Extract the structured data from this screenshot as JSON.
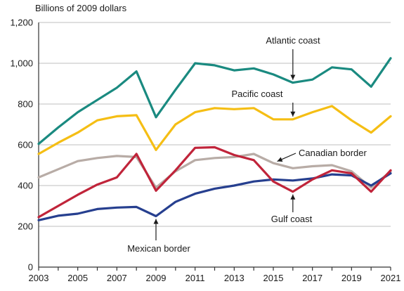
{
  "chart_data": {
    "type": "line",
    "title": "",
    "units_label": "Billions of 2009 dollars",
    "xlabel": "",
    "ylabel": "",
    "x": [
      2003,
      2004,
      2005,
      2006,
      2007,
      2008,
      2009,
      2010,
      2011,
      2012,
      2013,
      2014,
      2015,
      2016,
      2017,
      2018,
      2019,
      2020,
      2021
    ],
    "x_tick_labels": [
      "2003",
      "2005",
      "2007",
      "2009",
      "2011",
      "2013",
      "2015",
      "2017",
      "2019",
      "2021"
    ],
    "x_tick_values": [
      2003,
      2005,
      2007,
      2009,
      2011,
      2013,
      2015,
      2017,
      2019,
      2021
    ],
    "xlim": [
      2003,
      2021
    ],
    "y_tick_labels": [
      "0",
      "200",
      "400",
      "600",
      "800",
      "1,000",
      "1,200"
    ],
    "y_tick_values": [
      0,
      200,
      400,
      600,
      800,
      1000,
      1200
    ],
    "ylim": [
      0,
      1200
    ],
    "grid": "horizontal",
    "series": [
      {
        "name": "Atlantic coast",
        "color": "#1a8a80",
        "values": [
          605,
          685,
          760,
          820,
          880,
          960,
          735,
          870,
          1000,
          990,
          965,
          975,
          945,
          905,
          920,
          980,
          970,
          885,
          1025
        ]
      },
      {
        "name": "Pacific coast",
        "color": "#f5be14",
        "values": [
          555,
          610,
          660,
          720,
          740,
          745,
          575,
          700,
          760,
          780,
          775,
          780,
          725,
          725,
          760,
          790,
          720,
          660,
          740
        ]
      },
      {
        "name": "Canadian border",
        "color": "#b8aca6",
        "values": [
          440,
          480,
          520,
          535,
          545,
          540,
          390,
          470,
          525,
          535,
          540,
          555,
          510,
          485,
          495,
          500,
          470,
          390,
          470
        ]
      },
      {
        "name": "Gulf coast",
        "color": "#c0243a",
        "values": [
          245,
          300,
          355,
          405,
          440,
          555,
          375,
          475,
          585,
          588,
          550,
          525,
          420,
          370,
          430,
          475,
          460,
          370,
          475
        ]
      },
      {
        "name": "Mexican border",
        "color": "#263f8f",
        "values": [
          230,
          252,
          262,
          285,
          292,
          295,
          250,
          320,
          360,
          385,
          400,
          420,
          430,
          425,
          435,
          455,
          450,
          400,
          460
        ]
      }
    ],
    "annotations": [
      {
        "text": "Atlantic coast",
        "series": 0,
        "point_year": 2016
      },
      {
        "text": "Pacific coast",
        "series": 1,
        "point_year": 2016
      },
      {
        "text": "Canadian border",
        "series": 2,
        "point_year": 2015.2
      },
      {
        "text": "Gulf coast",
        "series": 3,
        "point_year": 2016
      },
      {
        "text": "Mexican border",
        "series": 4,
        "point_year": 2009
      }
    ]
  }
}
